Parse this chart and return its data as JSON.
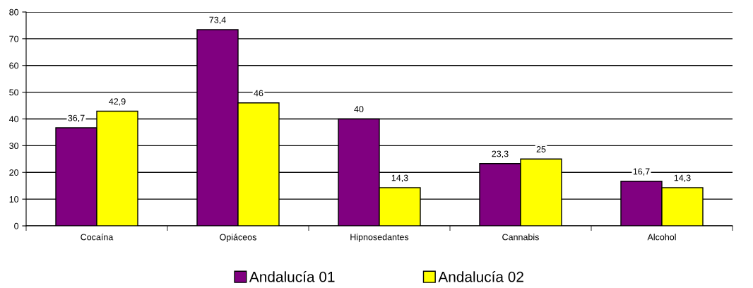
{
  "chart_data": {
    "type": "bar",
    "categories": [
      "Cocaína",
      "Opiáceos",
      "Hipnosedantes",
      "Cannabis",
      "Alcohol"
    ],
    "series": [
      {
        "name": "Andalucía 01",
        "color": "#800080",
        "values": [
          36.7,
          73.4,
          40,
          23.3,
          16.7
        ],
        "value_labels": [
          "36,7",
          "73,4",
          "40",
          "23,3",
          "16,7"
        ]
      },
      {
        "name": "Andalucía 02",
        "color": "#ffff00",
        "values": [
          42.9,
          46,
          14.3,
          25,
          14.3
        ],
        "value_labels": [
          "42,9",
          "46",
          "14,3",
          "25",
          "14,3"
        ]
      }
    ],
    "ylim": [
      0,
      80
    ],
    "yticks": [
      0,
      10,
      20,
      30,
      40,
      50,
      60,
      70,
      80
    ],
    "grid": "y",
    "legend": "bottom"
  }
}
